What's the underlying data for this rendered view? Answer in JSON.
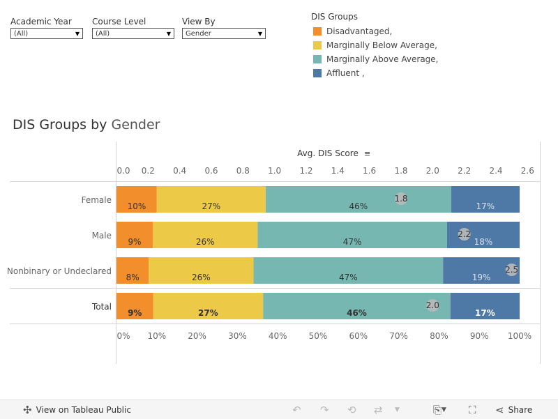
{
  "filters": [
    {
      "label": "Academic Year",
      "value": "(All)"
    },
    {
      "label": "Course Level",
      "value": "(All)"
    },
    {
      "label": "View By",
      "value": "Gender"
    }
  ],
  "legend": {
    "title": "DIS Groups",
    "items": [
      {
        "label": "Disadvantaged,",
        "color": "#f28e2b"
      },
      {
        "label": "Marginally Below Average,",
        "color": "#edc948"
      },
      {
        "label": "Marginally Above Average,",
        "color": "#76b7b2"
      },
      {
        "label": "Affluent ,",
        "color": "#4e79a7"
      }
    ]
  },
  "title": {
    "main": "DIS Groups by",
    "dim": "Gender"
  },
  "chart_data": {
    "type": "bar",
    "orientation": "horizontal-stacked-100",
    "categories": [
      "Female",
      "Male",
      "Nonbinary or Undeclared",
      "Total"
    ],
    "series": [
      {
        "name": "Disadvantaged,",
        "values": [
          10,
          9,
          8,
          9
        ],
        "labels": [
          "10%",
          "9%",
          "8%",
          "9%"
        ]
      },
      {
        "name": "Marginally Below Average,",
        "values": [
          27,
          26,
          26,
          27
        ],
        "labels": [
          "27%",
          "26%",
          "26%",
          "27%"
        ]
      },
      {
        "name": "Marginally Above Average,",
        "values": [
          46,
          47,
          47,
          46
        ],
        "labels": [
          "46%",
          "47%",
          "47%",
          "46%"
        ]
      },
      {
        "name": "Affluent ,",
        "values": [
          17,
          18,
          19,
          17
        ],
        "labels": [
          "17%",
          "18%",
          "19%",
          "17%"
        ]
      }
    ],
    "avg_dis_score": {
      "axis_title": "Avg. DIS Score",
      "values": [
        1.8,
        2.2,
        2.5,
        2.0
      ],
      "labels": [
        "1.8",
        "2.2",
        "2.5",
        "2.0"
      ],
      "ticks": [
        "0.0",
        "0.2",
        "0.4",
        "0.6",
        "0.8",
        "1.0",
        "1.2",
        "1.4",
        "1.6",
        "1.8",
        "2.0",
        "2.2",
        "2.4",
        "2.6"
      ],
      "range": [
        0,
        2.55
      ]
    },
    "percent_axis": {
      "ticks": [
        "0%",
        "10%",
        "20%",
        "30%",
        "40%",
        "50%",
        "60%",
        "70%",
        "80%",
        "90%",
        "100%"
      ],
      "range": [
        0,
        100
      ]
    },
    "colors": [
      "#f28e2b",
      "#edc948",
      "#76b7b2",
      "#4e79a7"
    ]
  },
  "footer": {
    "view_label": "View on Tableau Public",
    "share_label": "Share"
  }
}
